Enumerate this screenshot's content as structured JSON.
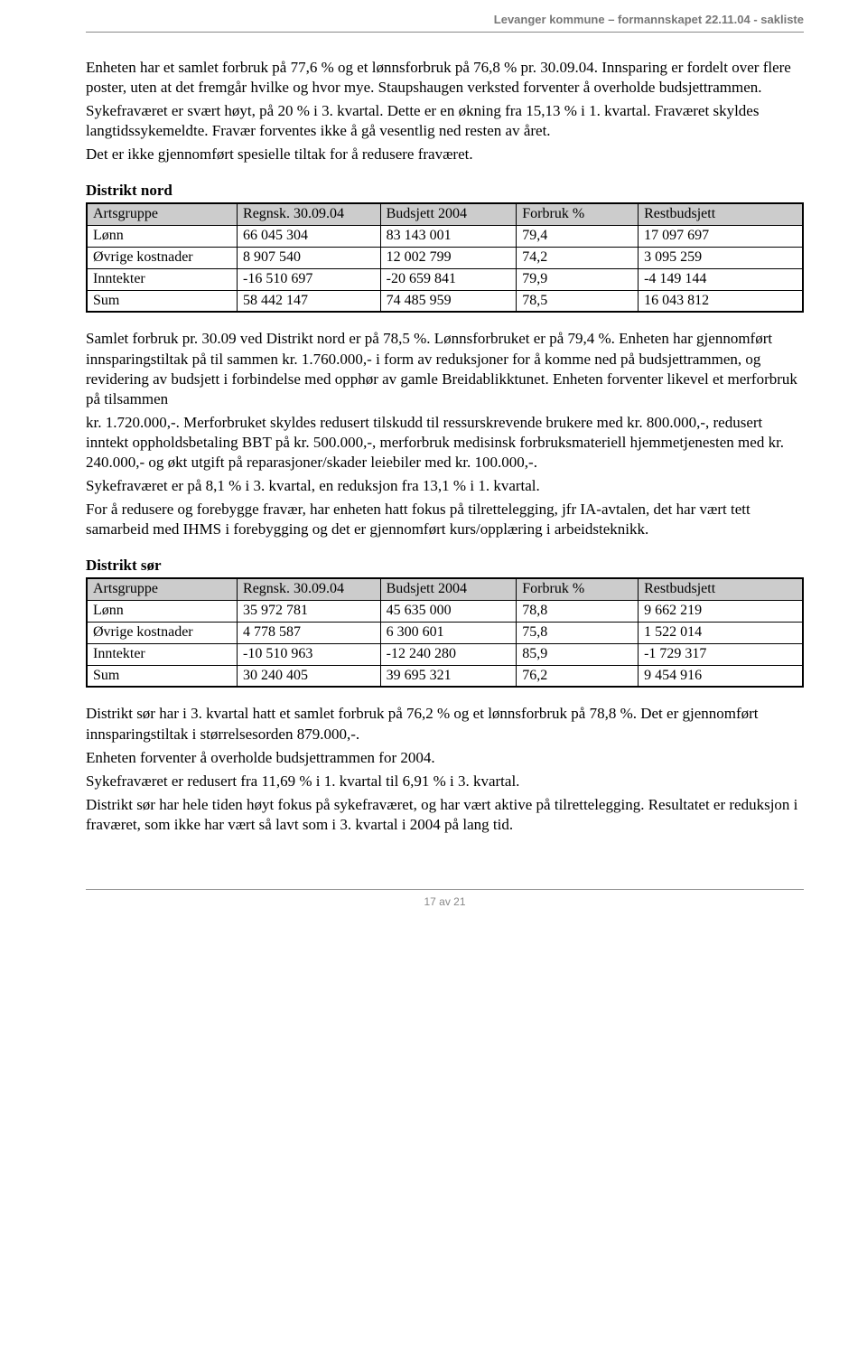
{
  "header": "Levanger kommune – formannskapet 22.11.04 - sakliste",
  "intro": {
    "p1": "Enheten har et samlet forbruk på 77,6 % og et lønnsforbruk på 76,8 % pr. 30.09.04. Innsparing er fordelt over flere poster, uten at det fremgår hvilke og hvor mye. Staupshaugen verksted forventer å overholde budsjettrammen.",
    "p2": "Sykefraværet er svært høyt, på 20 % i 3. kvartal. Dette er en økning fra 15,13 % i 1. kvartal. Fraværet skyldes langtidssykemeldte. Fravær forventes ikke å gå vesentlig ned resten av året.",
    "p3": "Det er ikke gjennomført spesielle tiltak for å redusere fraværet."
  },
  "tableHeaders": [
    "Artsgruppe",
    "Regnsk. 30.09.04",
    "Budsjett 2004",
    "Forbruk %",
    "Restbudsjett"
  ],
  "nord": {
    "title": "Distrikt nord",
    "rows": [
      [
        "Lønn",
        "66 045 304",
        "83 143 001",
        "79,4",
        "17 097 697"
      ],
      [
        "Øvrige kostnader",
        "8 907 540",
        "12 002 799",
        "74,2",
        "3 095 259"
      ],
      [
        "Inntekter",
        "-16 510 697",
        "-20 659 841",
        "79,9",
        "-4 149 144"
      ],
      [
        "Sum",
        "58 442 147",
        "74 485 959",
        "78,5",
        "16 043 812"
      ]
    ],
    "text": {
      "p1": "Samlet forbruk pr. 30.09 ved Distrikt nord er på 78,5 %. Lønnsforbruket  er på 79,4 %. Enheten har gjennomført innsparingstiltak på til sammen kr. 1.760.000,- i form av reduksjoner for å komme ned på budsjettrammen, og revidering av budsjett i  forbindelse med opphør av gamle Breidablikktunet. Enheten forventer likevel et merforbruk på tilsammen",
      "p2": "kr. 1.720.000,-. Merforbruket skyldes redusert tilskudd til ressurskrevende brukere med kr. 800.000,-, redusert inntekt oppholdsbetaling BBT på kr. 500.000,-, merforbruk medisinsk forbruksmateriell hjemmetjenesten med kr. 240.000,- og økt utgift på reparasjoner/skader leiebiler med kr. 100.000,-.",
      "p3": "Sykefraværet er på 8,1 % i 3. kvartal, en reduksjon fra 13,1 % i 1. kvartal.",
      "p4": "For å redusere og forebygge fravær, har enheten hatt fokus på tilrettelegging,  jfr IA-avtalen, det har vært tett samarbeid med IHMS i forebygging og det er gjennomført  kurs/opplæring i arbeidsteknikk."
    }
  },
  "sor": {
    "title": "Distrikt sør",
    "rows": [
      [
        "Lønn",
        "35 972 781",
        "45 635 000",
        "78,8",
        "9 662 219"
      ],
      [
        "Øvrige kostnader",
        "4 778 587",
        "6 300 601",
        "75,8",
        "1 522 014"
      ],
      [
        "Inntekter",
        "-10 510 963",
        "-12 240 280",
        "85,9",
        "-1 729 317"
      ],
      [
        "Sum",
        "30 240 405",
        "39 695 321",
        "76,2",
        "9 454 916"
      ]
    ],
    "text": {
      "p1": "Distrikt sør har i 3. kvartal hatt et samlet forbruk på 76,2 % og et lønnsforbruk på 78,8 %. Det er gjennomført innsparingstiltak i størrelsesorden 879.000,-.",
      "p2": "Enheten forventer å overholde budsjettrammen for 2004.",
      "p3": "Sykefraværet er redusert fra 11,69 % i 1. kvartal til 6,91 % i 3. kvartal.",
      "p4": "Distrikt sør har hele tiden høyt fokus på sykefraværet, og har vært aktive på tilrettelegging. Resultatet er reduksjon i fraværet, som ikke har vært så lavt som i 3. kvartal i 2004 på lang tid."
    }
  },
  "footer": "17 av 21",
  "style": {
    "headerBg": "#cccccc",
    "font": "Times New Roman",
    "fontSize": 17
  }
}
